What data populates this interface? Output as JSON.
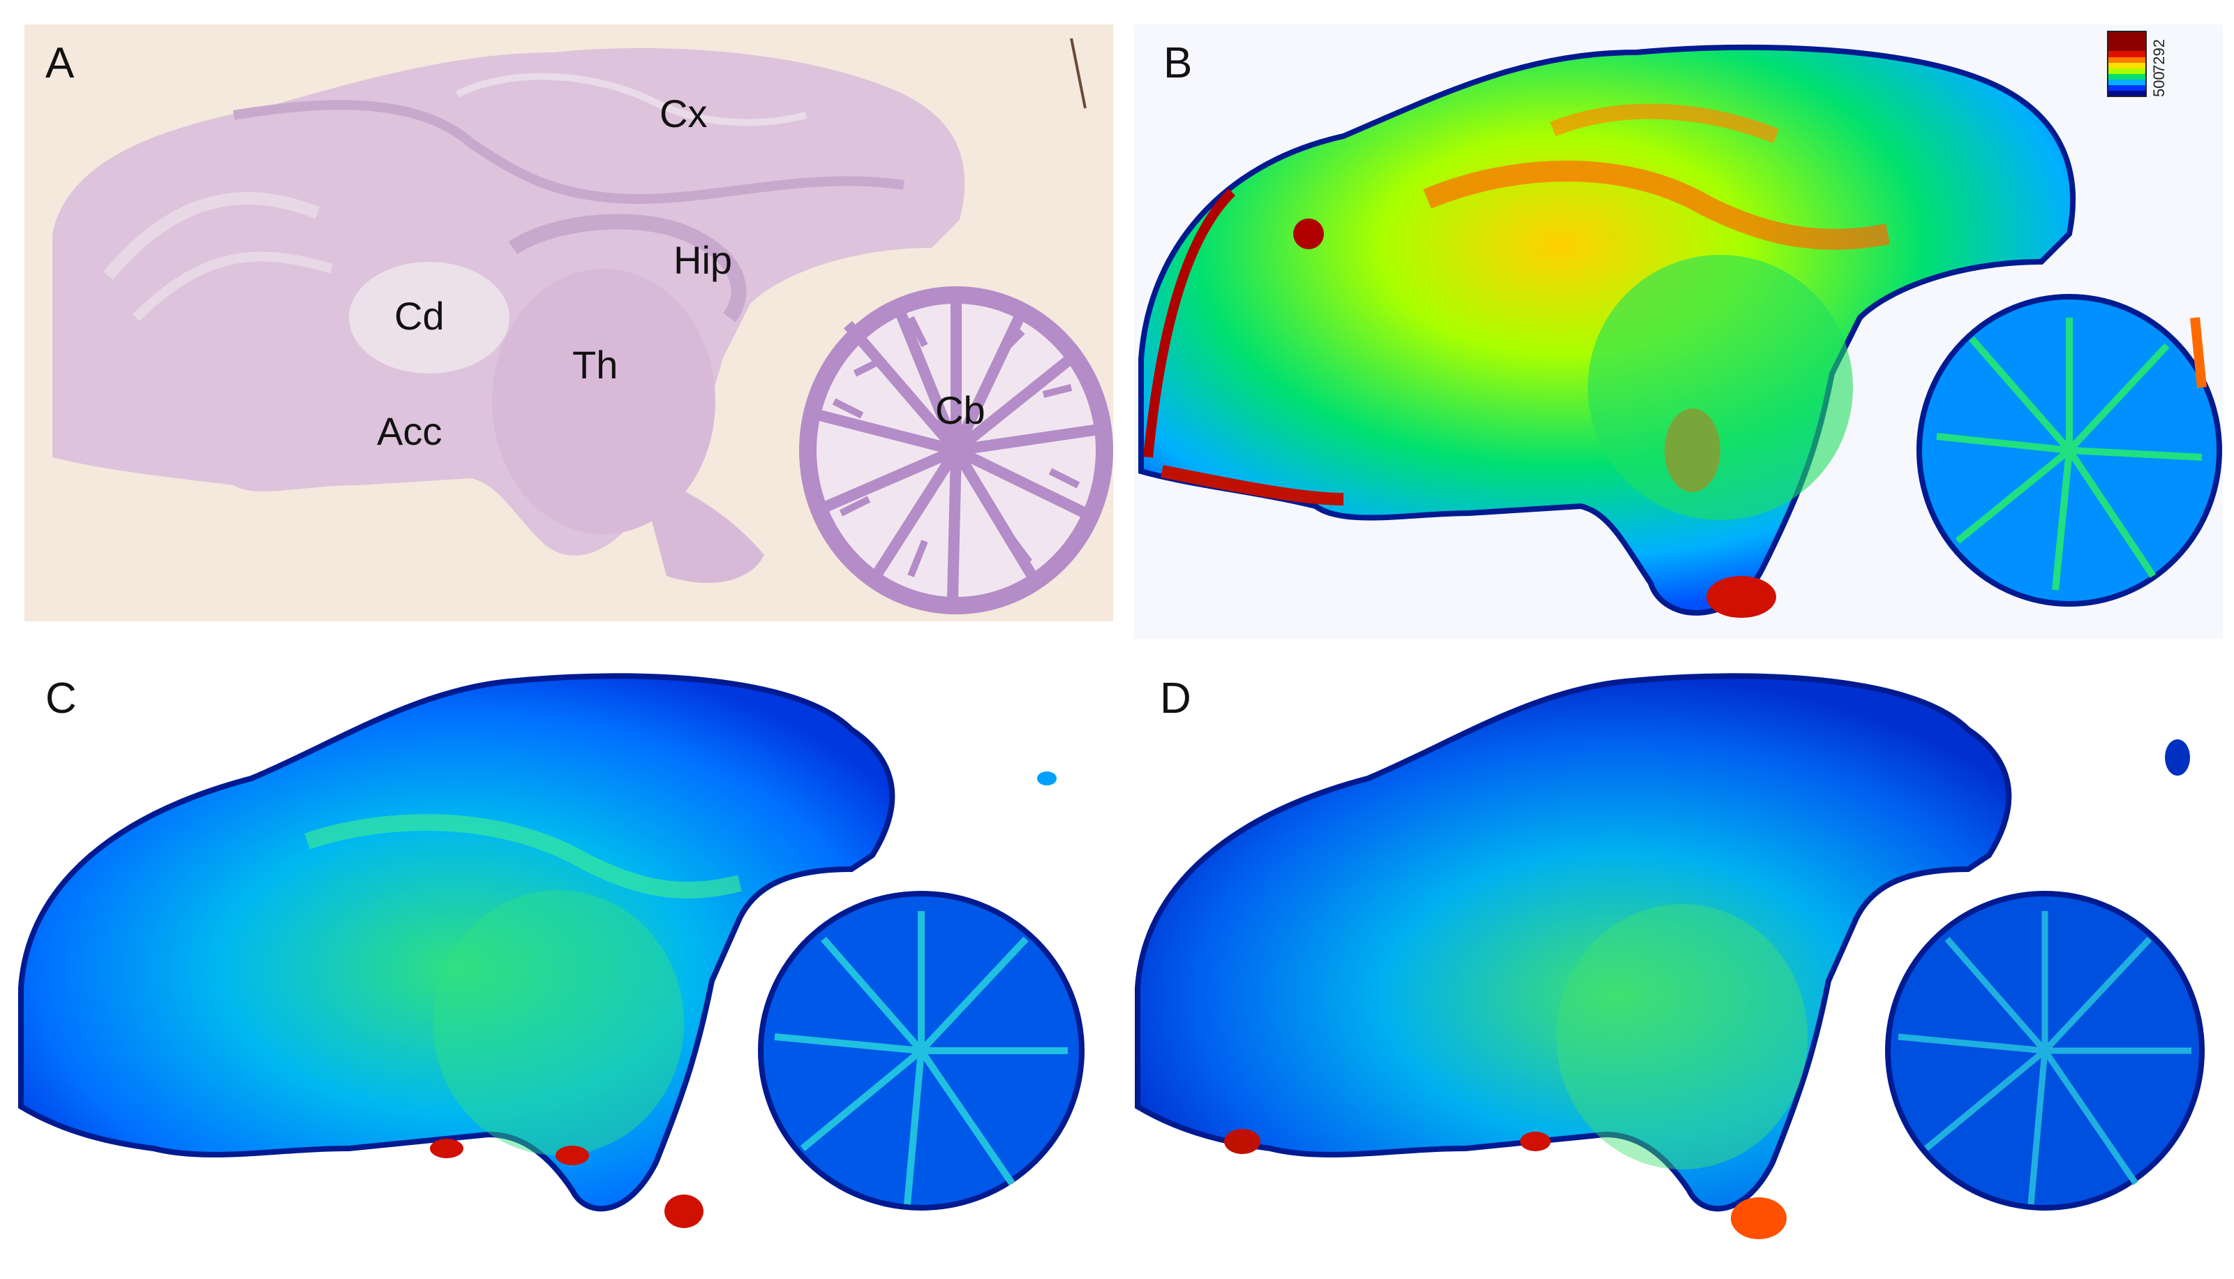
{
  "panels": [
    {
      "id": "A",
      "letter": "A",
      "kind": "histology"
    },
    {
      "id": "B",
      "letter": "B",
      "kind": "heatmap",
      "bg": "#f7f8fd"
    },
    {
      "id": "C",
      "letter": "C",
      "kind": "heatmap",
      "bg": "#ffffff"
    },
    {
      "id": "D",
      "letter": "D",
      "kind": "heatmap",
      "bg": "#ffffff"
    }
  ],
  "regions": {
    "cx": "Cx",
    "hip": "Hip",
    "cd": "Cd",
    "th": "Th",
    "acc": "Acc",
    "cb": "Cb"
  },
  "colorbar": {
    "min_label": "500",
    "max_label": "7292",
    "colors": [
      "#000a8c",
      "#0033ff",
      "#00b0ff",
      "#00e070",
      "#a8ff00",
      "#ffe000",
      "#ff7a00",
      "#e01000",
      "#8c0000"
    ]
  },
  "colors": {
    "histology_bg": "#f4e9dc",
    "tissue": "#ddc3dc",
    "tissue_dark": "#c9a8cd",
    "cerebellum": "#b48cc8"
  }
}
